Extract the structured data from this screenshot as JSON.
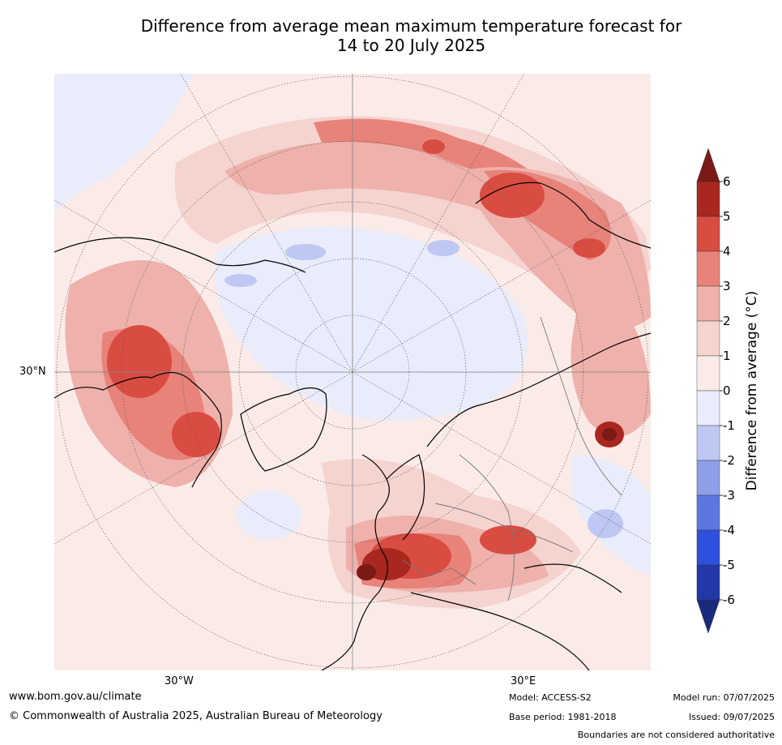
{
  "title_line1": "Difference from average mean maximum temperature forecast for",
  "title_line2": "14 to 20 July 2025",
  "map": {
    "projection": "north-polar-stereographic",
    "lat_label": "30°N",
    "lon_labels": [
      "30°W",
      "30°E"
    ]
  },
  "colorbar": {
    "label": "Difference from average (°C)",
    "ticks": [
      "6",
      "5",
      "4",
      "3",
      "2",
      "1",
      "0",
      "-1",
      "-2",
      "-3",
      "-4",
      "-5",
      "-6"
    ],
    "colors": [
      "#7a1a16",
      "#a8281f",
      "#d94c42",
      "#e8837a",
      "#efb1ab",
      "#f5d3cf",
      "#fbebe8",
      "#e8ecfb",
      "#bfc7f3",
      "#8e9ee8",
      "#5d77e0",
      "#2f50dc",
      "#2237a8",
      "#1a2a7c"
    ],
    "extend_top_color": "#7a1a16",
    "extend_bottom_color": "#1a2a7c"
  },
  "footer": {
    "website": "www.bom.gov.au/climate",
    "copyright": "© Commonwealth of Australia 2025, Australian Bureau of Meteorology",
    "model": "Model: ACCESS-S2",
    "base_period": "Base period: 1981-2018",
    "model_run": "Model run: 07/07/2025",
    "issued": "Issued: 09/07/2025",
    "disclaimer": "Boundaries are not considered authoritative"
  }
}
